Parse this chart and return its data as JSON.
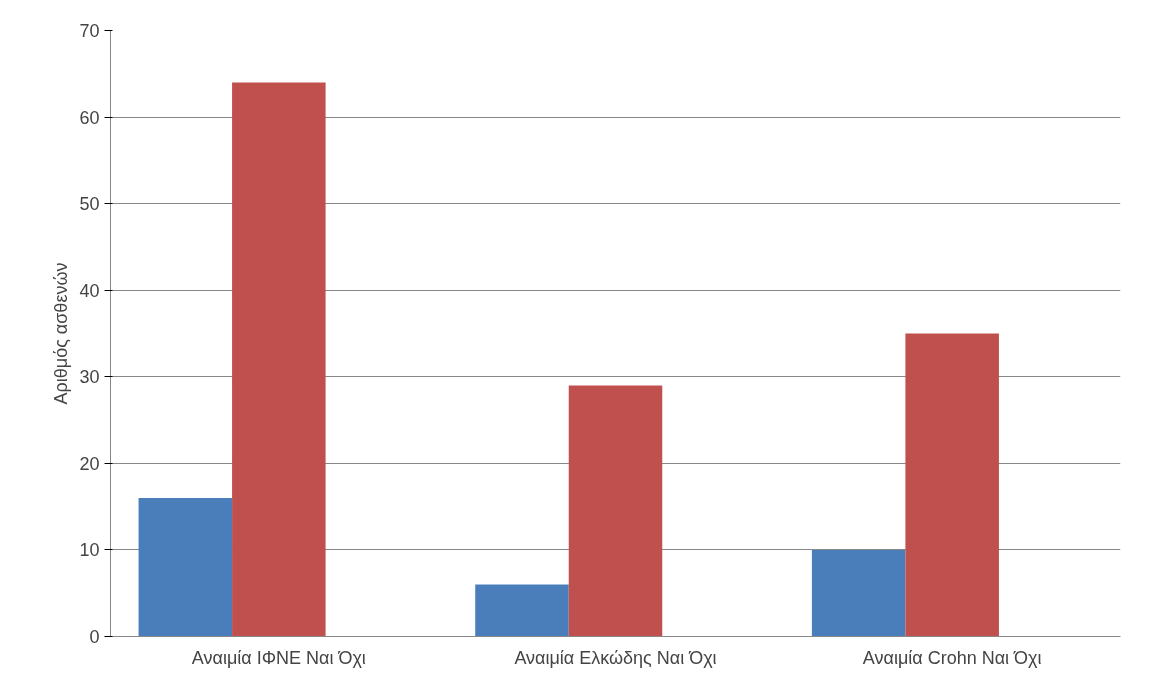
{
  "chart_data": {
    "type": "bar",
    "ylabel": "Αριθμός ασθενών",
    "categories": [
      "Αναιμία ΙΦΝΕ Ναι Όχι",
      "Αναιμία Ελκώδης Ναι Όχι",
      "Αναιμία Crohn Ναι Όχι"
    ],
    "series": [
      {
        "color": "#4a7ebb",
        "values": [
          16,
          6,
          10
        ]
      },
      {
        "color": "#c0504d",
        "values": [
          64,
          29,
          35
        ]
      }
    ],
    "ylim": [
      0,
      70
    ],
    "yticks": [
      0,
      10,
      20,
      30,
      40,
      50,
      60,
      70
    ],
    "grid": "y"
  }
}
